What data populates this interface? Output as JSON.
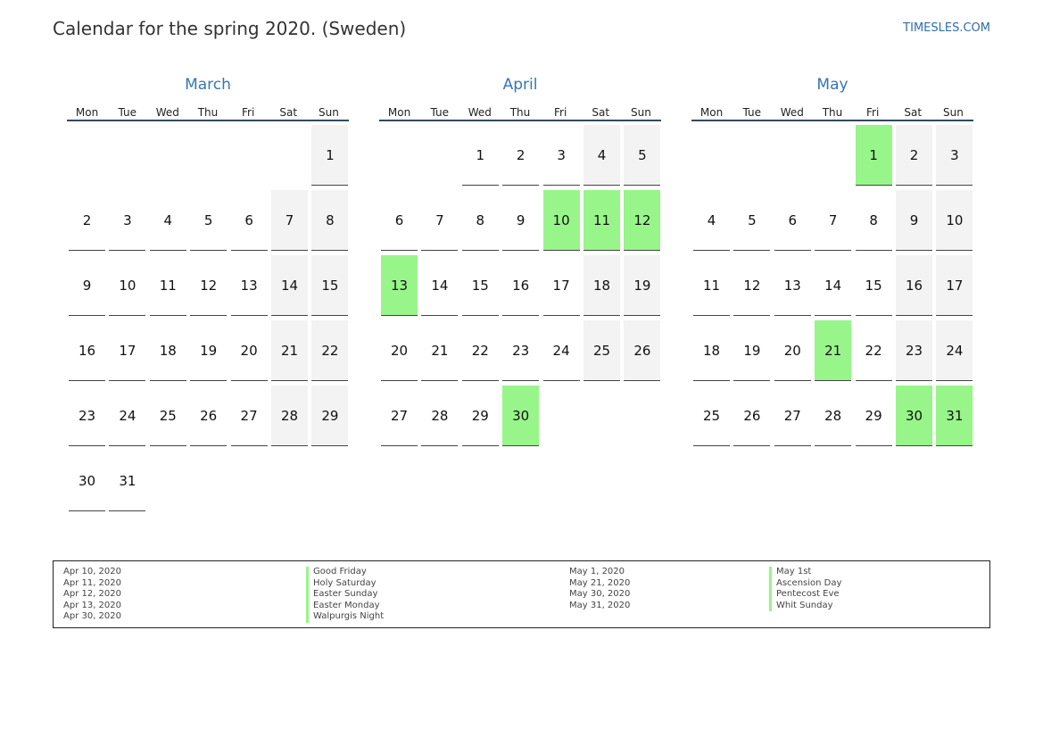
{
  "header": {
    "title": "Calendar for the spring 2020. (Sweden)",
    "site": "TIMESLES.COM"
  },
  "weekdays": [
    "Mon",
    "Tue",
    "Wed",
    "Thu",
    "Fri",
    "Sat",
    "Sun"
  ],
  "colors": {
    "holiday": "#98f58a",
    "weekend": "#f3f3f3",
    "month_title": "#3476b4"
  },
  "months": [
    {
      "name": "March",
      "start_weekday": 6,
      "days": 31,
      "holidays": []
    },
    {
      "name": "April",
      "start_weekday": 2,
      "days": 30,
      "holidays": [
        10,
        11,
        12,
        13,
        30
      ]
    },
    {
      "name": "May",
      "start_weekday": 4,
      "days": 31,
      "holidays": [
        1,
        21,
        30,
        31
      ]
    }
  ],
  "legend": {
    "group1_dates": [
      "Apr 10, 2020",
      "Apr 11, 2020",
      "Apr 12, 2020",
      "Apr 13, 2020",
      "Apr 30, 2020"
    ],
    "group1_names": [
      "Good Friday",
      "Holy Saturday",
      "Easter Sunday",
      "Easter Monday",
      "Walpurgis Night"
    ],
    "group2_dates": [
      "May 1, 2020",
      "May 21, 2020",
      "May 30, 2020",
      "May 31, 2020"
    ],
    "group2_names": [
      "May 1st",
      "Ascension Day",
      "Pentecost Eve",
      "Whit Sunday"
    ]
  }
}
